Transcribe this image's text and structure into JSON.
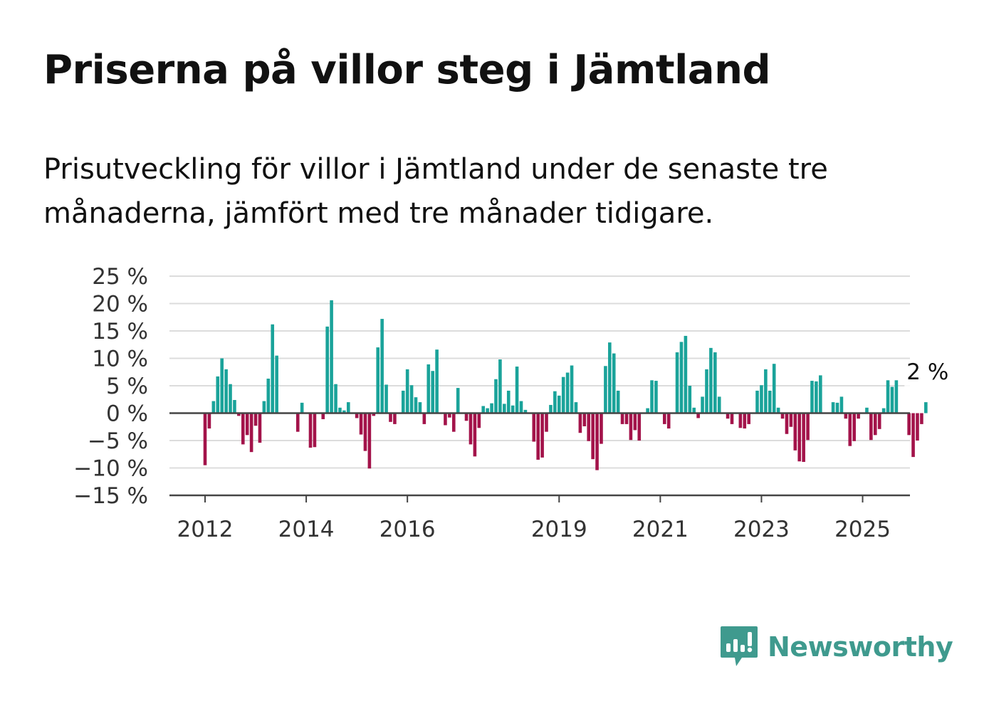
{
  "title": "Priserna på villor steg i Jämtland",
  "subtitle": "Prisutveckling för villor i Jämtland under de senaste tre månaderna, jämfört med tre månader tidigare.",
  "brand": {
    "name": "Newsworthy",
    "icon": "newsworthy-chart-logo-icon",
    "color": "#3f9a8e"
  },
  "chart_data": {
    "type": "bar",
    "title": "",
    "xlabel": "",
    "ylabel": "",
    "ylim": [
      -15,
      25
    ],
    "y_ticks": [
      25,
      20,
      15,
      10,
      5,
      0,
      -5,
      -10,
      -15
    ],
    "y_tick_labels": [
      "25 %",
      "20 %",
      "15 %",
      "10 %",
      "5 %",
      "0 %",
      "−5 %",
      "−10 %",
      "−15 %"
    ],
    "x_tick_labels": [
      "2012",
      "2014",
      "2016",
      "2019",
      "2021",
      "2023",
      "2025"
    ],
    "x_tick_years": [
      2012,
      2014,
      2016,
      2019,
      2021,
      2023,
      2025
    ],
    "grid": true,
    "positive_color": "#1aa39a",
    "negative_color": "#a3134a",
    "annotation": "2 %",
    "start": "2012-01",
    "frequency": "monthly",
    "values": [
      -9.5,
      -2.8,
      2.2,
      6.7,
      10.0,
      8.0,
      5.3,
      2.4,
      -0.5,
      -5.7,
      -4.0,
      -7.1,
      -2.3,
      -5.4,
      2.2,
      6.3,
      16.2,
      10.5,
      0,
      0,
      0,
      0,
      -3.4,
      1.9,
      0,
      -6.3,
      -6.2,
      0,
      -1.1,
      15.8,
      20.6,
      5.3,
      1.0,
      0.5,
      2.0,
      0,
      -0.9,
      -3.9,
      -6.9,
      -10.1,
      -0.5,
      12.0,
      17.2,
      5.2,
      -1.6,
      -2.0,
      0,
      4.1,
      8.0,
      5.1,
      2.9,
      2.0,
      -2.0,
      8.9,
      7.7,
      11.6,
      0,
      -2.2,
      -0.8,
      -3.4,
      4.6,
      0,
      -1.4,
      -5.7,
      -7.9,
      -2.7,
      1.3,
      0.9,
      1.8,
      6.2,
      9.8,
      1.7,
      4.1,
      1.4,
      8.5,
      2.2,
      0.6,
      0,
      -5.2,
      -8.5,
      -8.1,
      -3.4,
      1.5,
      4.0,
      3.2,
      6.6,
      7.4,
      8.7,
      2.0,
      -3.6,
      -2.4,
      -5.1,
      -8.4,
      -10.4,
      -5.6,
      8.6,
      12.9,
      10.9,
      4.1,
      -2.0,
      -2.0,
      -4.9,
      -3.1,
      -5.0,
      0,
      0.9,
      6.0,
      5.9,
      0,
      -2.0,
      -2.8,
      0,
      11.1,
      13.0,
      14.1,
      5.0,
      1.0,
      -0.9,
      3.0,
      8.0,
      11.9,
      11.1,
      3.0,
      0,
      -1.0,
      -2.0,
      0,
      -2.7,
      -2.8,
      -2.0,
      0,
      4.1,
      5.1,
      8.0,
      4.1,
      9.0,
      1.0,
      -1.0,
      -3.8,
      -2.5,
      -6.8,
      -8.8,
      -8.9,
      -4.9,
      5.9,
      5.8,
      6.9,
      0,
      0,
      2.0,
      1.9,
      3.0,
      -1.0,
      -6.0,
      -5.1,
      -1.0,
      0,
      1.0,
      -4.9,
      -4.0,
      -2.9,
      0.9,
      6.0,
      4.8,
      6.0,
      0,
      0,
      -4.0,
      -8.0,
      -5.0,
      -2.0,
      2.0
    ]
  }
}
